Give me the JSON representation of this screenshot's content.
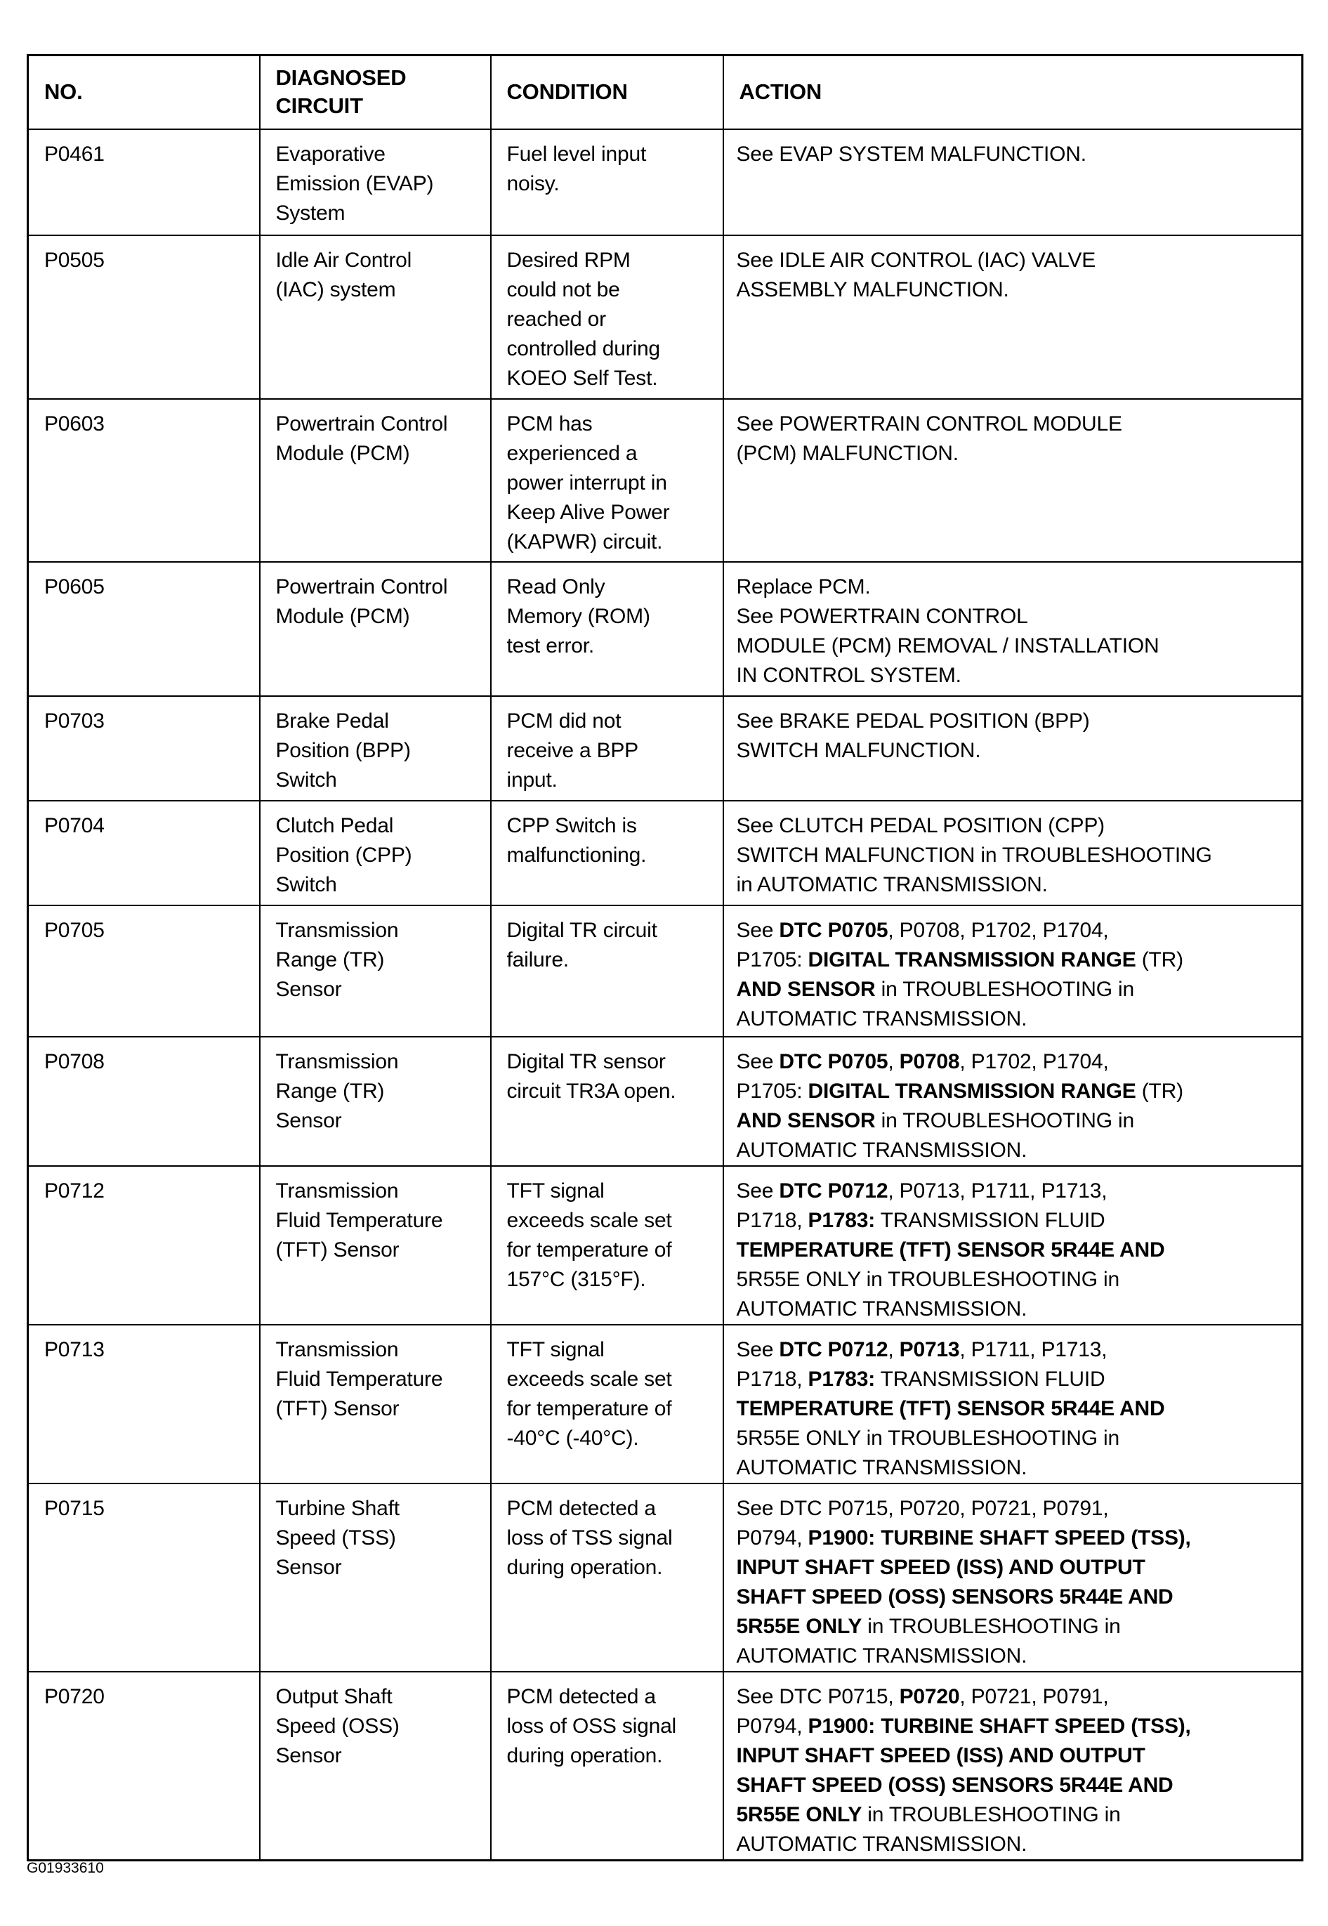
{
  "headers": {
    "no": "NO.",
    "circuit_1": "DIAGNOSED",
    "circuit_2": "CIRCUIT",
    "condition": "CONDITION",
    "action": "ACTION"
  },
  "rows": [
    {
      "no": "P0461",
      "circuit": [
        "Evaporative",
        "Emission (EVAP)",
        "System"
      ],
      "condition": [
        "Fuel level input",
        "noisy."
      ],
      "action": [
        [
          {
            "t": "See EVAP SYSTEM MALFUNCTION."
          }
        ]
      ]
    },
    {
      "no": "P0505",
      "circuit": [
        "Idle Air Control",
        "(IAC) system"
      ],
      "condition": [
        "Desired RPM",
        "could not be",
        "reached or",
        "controlled during",
        "KOEO Self Test."
      ],
      "action": [
        [
          {
            "t": "See IDLE AIR CONTROL (IAC) VALVE"
          }
        ],
        [
          {
            "t": "ASSEMBLY MALFUNCTION."
          }
        ]
      ]
    },
    {
      "no": "P0603",
      "circuit": [
        "Powertrain Control",
        "Module (PCM)"
      ],
      "condition": [
        "PCM has",
        "experienced a",
        "power interrupt in",
        "Keep Alive Power",
        "(KAPWR) circuit."
      ],
      "action": [
        [
          {
            "t": "See POWERTRAIN CONTROL MODULE"
          }
        ],
        [
          {
            "t": "(PCM) MALFUNCTION."
          }
        ]
      ]
    },
    {
      "no": "P0605",
      "circuit": [
        "Powertrain Control",
        "Module (PCM)"
      ],
      "condition": [
        "Read Only",
        "Memory (ROM)",
        "test error."
      ],
      "action": [
        [
          {
            "t": "Replace PCM."
          }
        ],
        [
          {
            "t": "See POWERTRAIN CONTROL"
          }
        ],
        [
          {
            "t": "MODULE (PCM) REMOVAL / INSTALLATION"
          }
        ],
        [
          {
            "t": "IN CONTROL SYSTEM."
          }
        ]
      ]
    },
    {
      "no": "P0703",
      "circuit": [
        "Brake Pedal",
        "Position (BPP)",
        "Switch"
      ],
      "condition": [
        "PCM did not",
        "receive a BPP",
        "input."
      ],
      "action": [
        [
          {
            "t": "See BRAKE PEDAL POSITION (BPP)"
          }
        ],
        [
          {
            "t": "SWITCH MALFUNCTION."
          }
        ]
      ]
    },
    {
      "no": "P0704",
      "circuit": [
        "Clutch Pedal",
        "Position (CPP)",
        "Switch"
      ],
      "condition": [
        "CPP Switch is",
        "malfunctioning."
      ],
      "action": [
        [
          {
            "t": "See CLUTCH PEDAL POSITION (CPP)"
          }
        ],
        [
          {
            "t": "SWITCH MALFUNCTION"
          },
          {
            "t": " in TROUBLESHOOTING"
          }
        ],
        [
          {
            "t": "in AUTOMATIC TRANSMISSION."
          }
        ]
      ]
    },
    {
      "no": "P0705",
      "circuit": [
        "Transmission",
        "Range (TR)",
        "Sensor"
      ],
      "condition": [
        "Digital TR circuit",
        "failure."
      ],
      "action": [
        [
          {
            "t": "See "
          },
          {
            "t": "DTC P0705",
            "b": true
          },
          {
            "t": ", P0708, P1702, P1704,"
          }
        ],
        [
          {
            "t": "P1705: "
          },
          {
            "t": "DIGITAL TRANSMISSION RANGE",
            "b": true
          },
          {
            "t": " (TR)"
          }
        ],
        [
          {
            "t": "AND SENSOR",
            "b": true
          },
          {
            "t": " in TROUBLESHOOTING in"
          }
        ],
        [
          {
            "t": "AUTOMATIC TRANSMISSION."
          }
        ]
      ]
    },
    {
      "no": "P0708",
      "circuit": [
        "Transmission",
        "Range (TR)",
        "Sensor"
      ],
      "condition": [
        "Digital TR sensor",
        "circuit TR3A open."
      ],
      "action": [
        [
          {
            "t": "See "
          },
          {
            "t": "DTC P0705",
            "b": true
          },
          {
            "t": ", "
          },
          {
            "t": "P0708",
            "b": true
          },
          {
            "t": ", P1702, P1704,"
          }
        ],
        [
          {
            "t": "P1705: "
          },
          {
            "t": "DIGITAL TRANSMISSION RANGE",
            "b": true
          },
          {
            "t": " (TR)"
          }
        ],
        [
          {
            "t": "AND SENSOR",
            "b": true
          },
          {
            "t": " in TROUBLESHOOTING in"
          }
        ],
        [
          {
            "t": "AUTOMATIC TRANSMISSION."
          }
        ]
      ]
    },
    {
      "no": "P0712",
      "circuit": [
        "Transmission",
        "Fluid Temperature",
        "(TFT) Sensor"
      ],
      "condition": [
        "TFT signal",
        "exceeds scale set",
        "for temperature of",
        "157°C (315°F)."
      ],
      "action": [
        [
          {
            "t": "See "
          },
          {
            "t": "DTC P0712",
            "b": true
          },
          {
            "t": ", P0713, P1711, P1713,"
          }
        ],
        [
          {
            "t": "P1718, "
          },
          {
            "t": "P1783:",
            "b": true
          },
          {
            "t": " TRANSMISSION FLUID"
          }
        ],
        [
          {
            "t": "TEMPERATURE (TFT) SENSOR 5R44E AND",
            "b": true
          }
        ],
        [
          {
            "t": "5R55E ONLY"
          },
          {
            "t": " in TROUBLESHOOTING in"
          }
        ],
        [
          {
            "t": "AUTOMATIC TRANSMISSION."
          }
        ]
      ]
    },
    {
      "no": "P0713",
      "circuit": [
        "Transmission",
        "Fluid Temperature",
        "(TFT) Sensor"
      ],
      "condition": [
        "TFT signal",
        "exceeds scale set",
        "for temperature of",
        "-40°C (-40°C)."
      ],
      "action": [
        [
          {
            "t": "See "
          },
          {
            "t": "DTC P0712",
            "b": true
          },
          {
            "t": ", "
          },
          {
            "t": "P0713",
            "b": true
          },
          {
            "t": ", P1711, P1713,"
          }
        ],
        [
          {
            "t": "P1718, "
          },
          {
            "t": "P1783:",
            "b": true
          },
          {
            "t": " TRANSMISSION FLUID"
          }
        ],
        [
          {
            "t": "TEMPERATURE (TFT) SENSOR 5R44E AND",
            "b": true
          }
        ],
        [
          {
            "t": "5R55E ONLY"
          },
          {
            "t": " in TROUBLESHOOTING in"
          }
        ],
        [
          {
            "t": "AUTOMATIC TRANSMISSION."
          }
        ]
      ]
    },
    {
      "no": "P0715",
      "circuit": [
        "Turbine Shaft",
        "Speed (TSS)",
        "Sensor"
      ],
      "condition": [
        "PCM detected a",
        "loss of TSS signal",
        "during operation."
      ],
      "action": [
        [
          {
            "t": "See DTC P0715, P0720, P0721, P0791,"
          }
        ],
        [
          {
            "t": "P0794, "
          },
          {
            "t": "P1900: TURBINE SHAFT SPEED (TSS),",
            "b": true
          }
        ],
        [
          {
            "t": "INPUT SHAFT SPEED (ISS) AND OUTPUT",
            "b": true
          }
        ],
        [
          {
            "t": "SHAFT SPEED (OSS) SENSORS 5R44E AND",
            "b": true
          }
        ],
        [
          {
            "t": "5R55E ONLY",
            "b": true
          },
          {
            "t": " in TROUBLESHOOTING in"
          }
        ],
        [
          {
            "t": "AUTOMATIC TRANSMISSION."
          }
        ]
      ]
    },
    {
      "no": "P0720",
      "circuit": [
        "Output Shaft",
        "Speed (OSS)",
        "Sensor"
      ],
      "condition": [
        "PCM detected a",
        "loss of OSS signal",
        "during operation."
      ],
      "action": [
        [
          {
            "t": "See DTC P0715, "
          },
          {
            "t": "P0720",
            "b": true
          },
          {
            "t": ", P0721, P0791,"
          }
        ],
        [
          {
            "t": "P0794, "
          },
          {
            "t": "P1900: TURBINE SHAFT SPEED (TSS),",
            "b": true
          }
        ],
        [
          {
            "t": "INPUT SHAFT SPEED (ISS) AND OUTPUT",
            "b": true
          }
        ],
        [
          {
            "t": "SHAFT SPEED (OSS) SENSORS 5R44E AND",
            "b": true
          }
        ],
        [
          {
            "t": "5R55E ONLY",
            "b": true
          },
          {
            "t": " in TROUBLESHOOTING in"
          }
        ],
        [
          {
            "t": "AUTOMATIC TRANSMISSION."
          }
        ]
      ]
    }
  ],
  "figure_id": "G01933610"
}
